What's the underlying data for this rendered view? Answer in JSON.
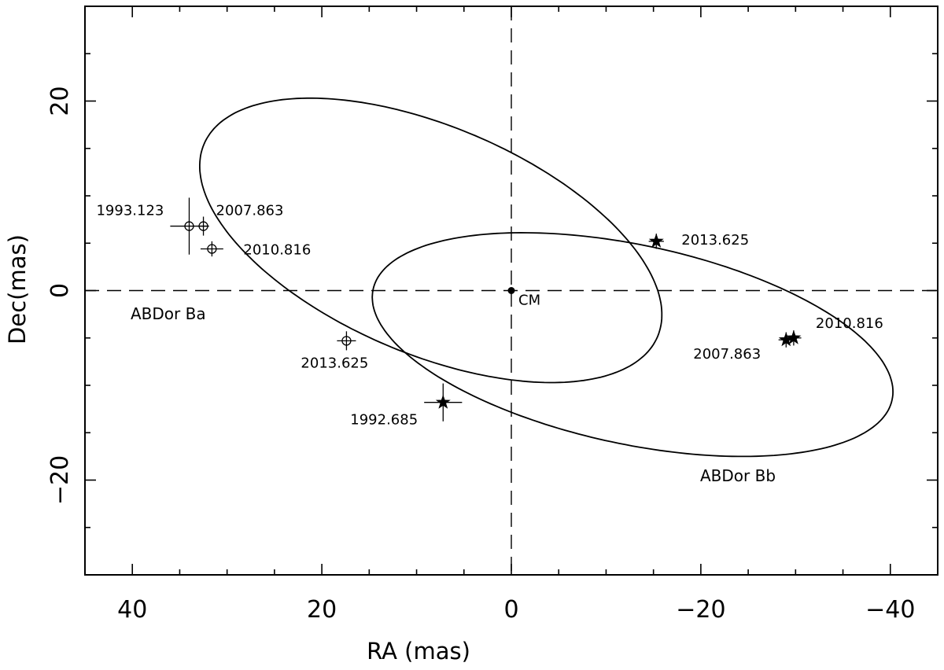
{
  "chart_data": {
    "type": "scatter",
    "xlabel": "RA (mas)",
    "ylabel": "Dec(mas)",
    "xlim": [
      45,
      -45
    ],
    "ylim": [
      -30,
      30
    ],
    "x_ticks": [
      40,
      20,
      0,
      -20,
      -40
    ],
    "x_tick_labels": [
      "40",
      "20",
      "0",
      "−20",
      "−40"
    ],
    "y_ticks": [
      -20,
      0,
      20
    ],
    "y_tick_labels": [
      "−20",
      "0",
      "20"
    ],
    "grid": false,
    "reference_lines": {
      "x": 0,
      "y": 0,
      "style": "dashed"
    },
    "center_of_mass": {
      "label": "CM",
      "x": 0,
      "y": 0
    },
    "series": [
      {
        "label": "ABDor Ba",
        "marker": "open-circle",
        "points": [
          {
            "label": "1993.123",
            "x": 34.0,
            "y": 6.8,
            "x_err": 2.0,
            "y_err": 3.0
          },
          {
            "label": "2007.863",
            "x": 32.5,
            "y": 6.8,
            "x_err": 0.6,
            "y_err": 1.0
          },
          {
            "label": "2010.816",
            "x": 31.6,
            "y": 4.4,
            "x_err": 1.2,
            "y_err": 0.8
          },
          {
            "label": "2013.625",
            "x": 17.4,
            "y": -5.3,
            "x_err": 1.0,
            "y_err": 1.0
          }
        ]
      },
      {
        "label": "ABDor Bb",
        "marker": "filled-star",
        "points": [
          {
            "label": "1992.685",
            "x": 7.2,
            "y": -11.8,
            "x_err": 2.0,
            "y_err": 2.0
          },
          {
            "label": "2007.863",
            "x": -29.0,
            "y": -5.2,
            "x_err": 0.8,
            "y_err": 0.8
          },
          {
            "label": "2010.816",
            "x": -29.8,
            "y": -5.0,
            "x_err": 0.8,
            "y_err": 0.8
          },
          {
            "label": "2013.625",
            "x": -15.3,
            "y": 5.2,
            "x_err": 0.8,
            "y_err": 0.8
          }
        ]
      }
    ],
    "orbits": [
      {
        "name": "ABDor Ba",
        "center_x": 8.5,
        "center_y": 5.3,
        "semi_major": 26.0,
        "semi_minor": 12.0,
        "tilt_deg": 23
      },
      {
        "name": "ABDor Bb",
        "center_x": -12.8,
        "center_y": -5.7,
        "semi_major": 28.0,
        "semi_minor": 10.5,
        "tilt_deg": 12
      }
    ]
  }
}
